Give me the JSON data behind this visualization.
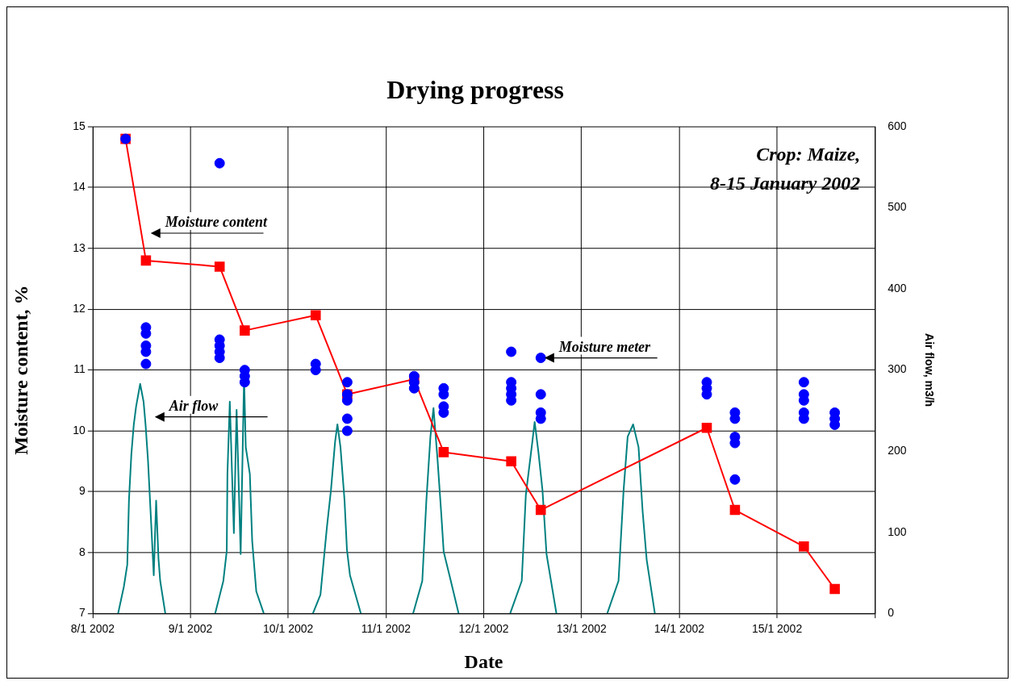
{
  "chart_data": {
    "type": "line",
    "title": "Drying progress",
    "xlabel": "Date",
    "ylabel": "Moisture content, %",
    "y2label": "Air flow, m3/h",
    "xlim": [
      "2002-01-08",
      "2002-01-16"
    ],
    "xticks": [
      {
        "value": "2002-01-08",
        "label": "8/1 2002"
      },
      {
        "value": "2002-01-09",
        "label": "9/1 2002"
      },
      {
        "value": "2002-01-10",
        "label": "10/1 2002"
      },
      {
        "value": "2002-01-11",
        "label": "11/1 2002"
      },
      {
        "value": "2002-01-12",
        "label": "12/1 2002"
      },
      {
        "value": "2002-01-13",
        "label": "13/1 2002"
      },
      {
        "value": "2002-01-14",
        "label": "14/1 2002"
      },
      {
        "value": "2002-01-15",
        "label": "15/1 2002"
      },
      {
        "value": "2002-01-16",
        "label": null
      }
    ],
    "ylim": [
      7,
      15
    ],
    "yticks": [
      7,
      8,
      9,
      10,
      11,
      12,
      13,
      14,
      15
    ],
    "y2lim": [
      0,
      600
    ],
    "y2ticks": [
      0,
      100,
      200,
      300,
      400,
      500,
      600
    ],
    "grid": true,
    "series": [
      {
        "axis": "y2",
        "color": "#008080",
        "marker": "none",
        "line_style": "solid",
        "x": [
          "2002-01-08T06:15",
          "2002-01-08T07:40",
          "2002-01-08T08:30",
          "2002-01-08T08:55",
          "2002-01-08T09:30",
          "2002-01-08T10:05",
          "2002-01-08T10:40",
          "2002-01-08T11:40",
          "2002-01-08T12:30",
          "2002-01-08T13:00",
          "2002-01-08T13:35",
          "2002-01-08T14:25",
          "2002-01-08T15:00",
          "2002-01-08T15:35",
          "2002-01-08T16:10",
          "2002-01-08T16:35",
          "2002-01-08T17:50",
          "2002-01-09T00:00",
          "2002-01-09T06:05",
          "2002-01-09T08:05",
          "2002-01-09T08:55",
          "2002-01-09T09:05",
          "2002-01-09T09:40",
          "2002-01-09T10:40",
          "2002-01-09T11:20",
          "2002-01-09T12:20",
          "2002-01-09T13:10",
          "2002-01-09T13:35",
          "2002-01-09T14:35",
          "2002-01-09T15:10",
          "2002-01-09T16:10",
          "2002-01-09T18:00",
          "2002-01-10T00:00",
          "2002-01-10T06:05",
          "2002-01-10T07:55",
          "2002-01-10T09:30",
          "2002-01-10T10:30",
          "2002-01-10T11:30",
          "2002-01-10T12:05",
          "2002-01-10T12:50",
          "2002-01-10T13:50",
          "2002-01-10T14:25",
          "2002-01-10T15:10",
          "2002-01-10T17:50",
          "2002-01-11T00:00",
          "2002-01-11T06:40",
          "2002-01-11T08:55",
          "2002-01-11T09:55",
          "2002-01-11T10:55",
          "2002-01-11T11:40",
          "2002-01-11T12:40",
          "2002-01-11T13:35",
          "2002-01-11T14:10",
          "2002-01-11T15:35",
          "2002-01-11T17:50",
          "2002-01-12T00:00",
          "2002-01-12T06:30",
          "2002-01-12T09:20",
          "2002-01-12T10:20",
          "2002-01-12T11:55",
          "2002-01-12T12:30",
          "2002-01-12T13:25",
          "2002-01-12T14:25",
          "2002-01-12T15:25",
          "2002-01-12T17:50",
          "2002-01-13T00:00",
          "2002-01-13T06:20",
          "2002-01-13T09:05",
          "2002-01-13T10:20",
          "2002-01-13T11:20",
          "2002-01-13T12:40",
          "2002-01-13T14:00",
          "2002-01-13T15:00",
          "2002-01-13T16:00",
          "2002-01-13T18:00"
        ],
        "values": [
          0,
          33,
          60,
          140,
          196,
          232,
          255,
          283,
          261,
          232,
          189,
          106,
          47,
          139,
          67,
          40,
          0,
          null,
          0,
          40,
          77,
          172,
          261,
          99,
          251,
          73,
          291,
          205,
          172,
          89,
          27,
          0,
          null,
          0,
          23,
          106,
          152,
          211,
          233,
          205,
          139,
          79,
          47,
          0,
          null,
          0,
          40,
          139,
          218,
          253,
          189,
          122,
          76,
          47,
          0,
          null,
          0,
          40,
          146,
          211,
          236,
          199,
          152,
          73,
          0,
          null,
          0,
          40,
          152,
          218,
          233,
          205,
          126,
          66,
          0
        ]
      },
      {
        "color": "#ff0000",
        "marker": "square",
        "line_style": "solid",
        "x": [
          "2002-01-08T08:05",
          "2002-01-08T13:05",
          "2002-01-09T07:10",
          "2002-01-09T13:20",
          "2002-01-10T06:45",
          "2002-01-10T14:30",
          "2002-01-11T06:55",
          "2002-01-11T14:10",
          "2002-01-12T06:45",
          "2002-01-12T14:00",
          "2002-01-14T06:45",
          "2002-01-14T13:40",
          "2002-01-15T06:35",
          "2002-01-15T14:10"
        ],
        "values": [
          14.8,
          12.8,
          12.7,
          11.65,
          11.9,
          10.6,
          10.85,
          9.65,
          9.5,
          8.7,
          10.05,
          8.7,
          8.1,
          7.4
        ]
      },
      {
        "type": "scatter",
        "color": "#0000ff",
        "marker": "circle",
        "x": [
          "2002-01-08T08:05",
          "2002-01-08T13:05",
          "2002-01-08T13:05",
          "2002-01-08T13:05",
          "2002-01-08T13:05",
          "2002-01-08T13:05",
          "2002-01-09T07:10",
          "2002-01-09T07:10",
          "2002-01-09T07:10",
          "2002-01-09T07:10",
          "2002-01-09T07:10",
          "2002-01-09T13:20",
          "2002-01-09T13:20",
          "2002-01-09T13:20",
          "2002-01-10T06:45",
          "2002-01-10T06:45",
          "2002-01-10T14:30",
          "2002-01-10T14:30",
          "2002-01-10T14:30",
          "2002-01-10T14:30",
          "2002-01-10T14:30",
          "2002-01-11T06:55",
          "2002-01-11T06:55",
          "2002-01-11T06:55",
          "2002-01-11T14:10",
          "2002-01-11T14:10",
          "2002-01-11T14:10",
          "2002-01-11T14:10",
          "2002-01-12T06:45",
          "2002-01-12T06:45",
          "2002-01-12T06:45",
          "2002-01-12T06:45",
          "2002-01-12T06:45",
          "2002-01-12T14:00",
          "2002-01-12T14:00",
          "2002-01-12T14:00",
          "2002-01-12T14:00",
          "2002-01-14T06:45",
          "2002-01-14T06:45",
          "2002-01-14T06:45",
          "2002-01-14T13:40",
          "2002-01-14T13:40",
          "2002-01-14T13:40",
          "2002-01-14T13:40",
          "2002-01-14T13:40",
          "2002-01-15T06:35",
          "2002-01-15T06:35",
          "2002-01-15T06:35",
          "2002-01-15T06:35",
          "2002-01-15T06:35",
          "2002-01-15T14:10",
          "2002-01-15T14:10",
          "2002-01-15T14:10"
        ],
        "values": [
          14.8,
          11.7,
          11.6,
          11.4,
          11.3,
          11.1,
          14.4,
          11.5,
          11.4,
          11.3,
          11.2,
          11.0,
          10.9,
          10.8,
          11.1,
          11.0,
          10.8,
          10.6,
          10.5,
          10.2,
          10.0,
          10.9,
          10.8,
          10.7,
          10.7,
          10.6,
          10.4,
          10.3,
          11.3,
          10.8,
          10.7,
          10.6,
          10.5,
          11.2,
          10.6,
          10.3,
          10.2,
          10.8,
          10.7,
          10.6,
          10.3,
          10.2,
          9.9,
          9.8,
          9.2,
          10.8,
          10.6,
          10.5,
          10.3,
          10.2,
          10.3,
          10.2,
          10.1
        ]
      }
    ],
    "annotations": [
      "Crop: Maize,",
      "8-15 January 2002",
      {
        "text": "Moisture content",
        "x": "2002-01-08T12:40",
        "y": 13.25
      },
      {
        "text": "Air flow",
        "x": "2002-01-08T13:40",
        "y": 10.23
      },
      {
        "text": "Moisture meter",
        "x": "2002-01-12T13:20",
        "y": 11.2
      }
    ]
  }
}
